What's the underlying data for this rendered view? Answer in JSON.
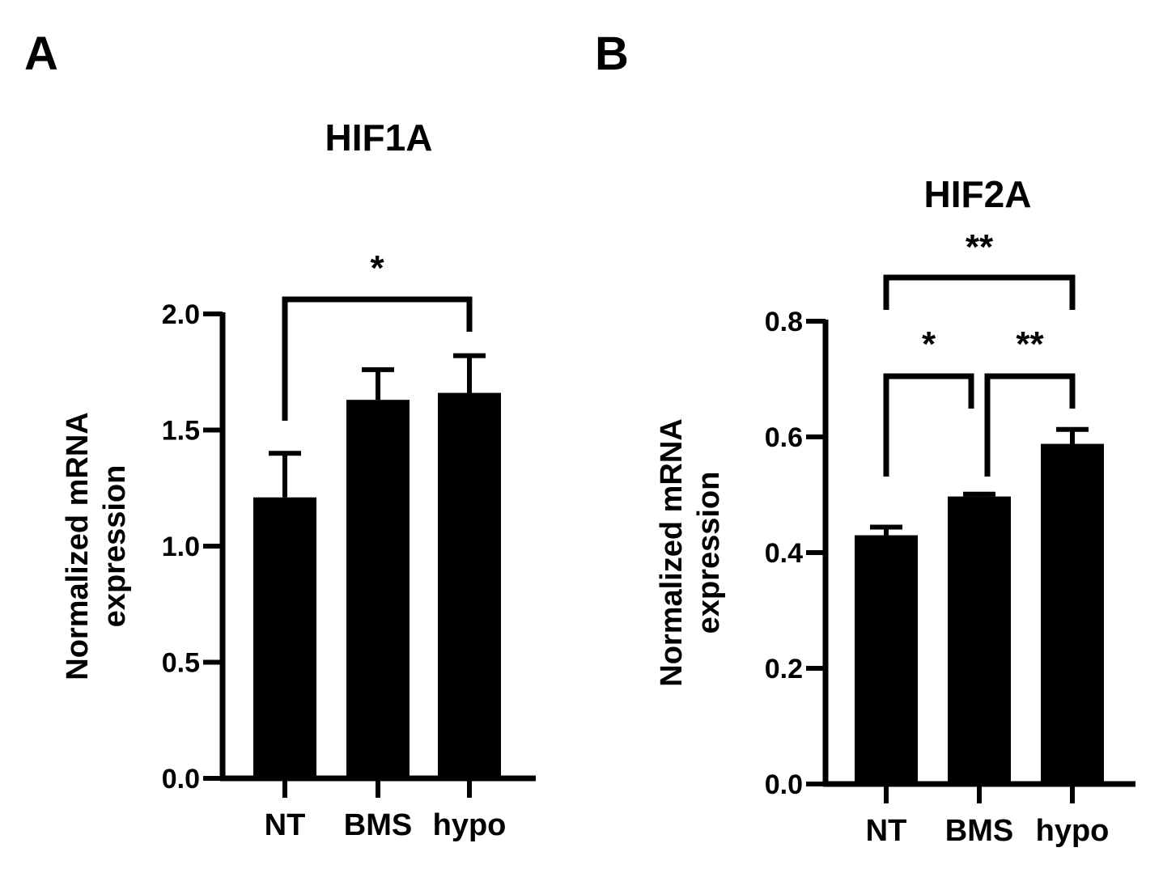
{
  "figure": {
    "panels": [
      "A",
      "B"
    ]
  },
  "chart_data": [
    {
      "type": "bar",
      "panel": "A",
      "title": "HIF1A",
      "xlabel": "",
      "ylabel": "Normalized mRNA expression",
      "ylabel_lines": [
        "Normalized mRNA",
        "expression"
      ],
      "categories": [
        "NT",
        "BMS",
        "hypo"
      ],
      "values": [
        1.21,
        1.63,
        1.66
      ],
      "errors": [
        0.19,
        0.13,
        0.16
      ],
      "ylim": [
        0,
        2.0
      ],
      "yticks": [
        0.0,
        0.5,
        1.0,
        1.5,
        2.0
      ],
      "ytick_labels": [
        "0.0",
        "0.5",
        "1.0",
        "1.5",
        "2.0"
      ],
      "bar_color": "#000000",
      "grid": false,
      "significance": [
        {
          "from": "NT",
          "to": "hypo",
          "label": "*"
        }
      ]
    },
    {
      "type": "bar",
      "panel": "B",
      "title": "HIF2A",
      "xlabel": "",
      "ylabel": "Normalized mRNA expression",
      "ylabel_lines": [
        "Normalized mRNA",
        "expression"
      ],
      "categories": [
        "NT",
        "BMS",
        "hypo"
      ],
      "values": [
        0.43,
        0.497,
        0.588
      ],
      "errors": [
        0.014,
        0.004,
        0.025
      ],
      "ylim": [
        0,
        0.8
      ],
      "yticks": [
        0.0,
        0.2,
        0.4,
        0.6,
        0.8
      ],
      "ytick_labels": [
        "0.0",
        "0.2",
        "0.4",
        "0.6",
        "0.8"
      ],
      "bar_color": "#000000",
      "grid": false,
      "significance": [
        {
          "from": "NT",
          "to": "BMS",
          "label": "*"
        },
        {
          "from": "BMS",
          "to": "hypo",
          "label": "**"
        },
        {
          "from": "NT",
          "to": "hypo",
          "label": "**"
        }
      ]
    }
  ]
}
